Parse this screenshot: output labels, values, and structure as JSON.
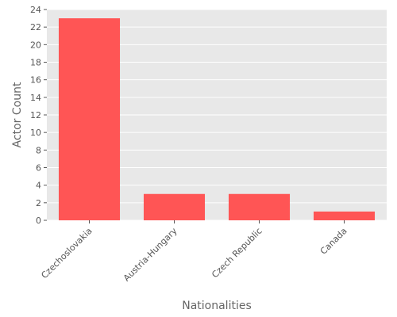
{
  "chart_data": {
    "type": "bar",
    "categories": [
      "Czechoslovakia",
      "Austria-Hungary",
      "Czech Republic",
      "Canada"
    ],
    "values": [
      23,
      3,
      3,
      1
    ],
    "xlabel": "Nationalities",
    "ylabel": "Actor Count",
    "ylim": [
      0,
      24
    ],
    "yticks": [
      0,
      2,
      4,
      6,
      8,
      10,
      12,
      14,
      16,
      18,
      20,
      22,
      24
    ],
    "grid": true,
    "legend": "none",
    "colors": {
      "bar": "#ff5555",
      "plot_background": "#e8e8e8",
      "grid": "#ffffff"
    }
  }
}
